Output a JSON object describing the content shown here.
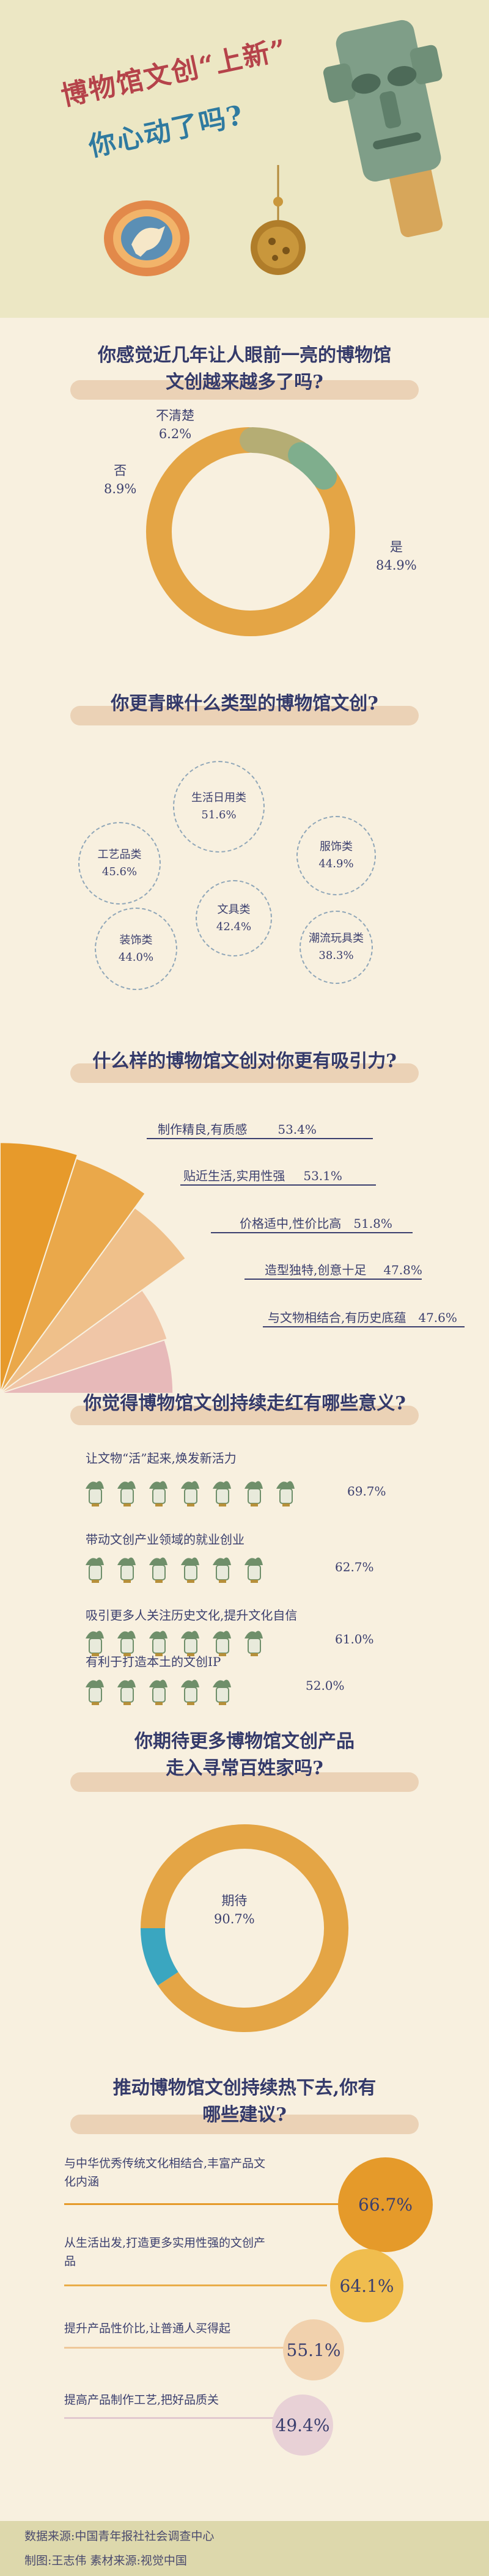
{
  "header": {
    "title_line1": "博物馆文创“上新”",
    "title_line2": "你心动了吗?"
  },
  "colors": {
    "header_bg": "#ece7c4",
    "page_bg": "#f8f0df",
    "accent_orange": "#e4a545",
    "accent_olive": "#b5ad74",
    "accent_green": "#7fae8d",
    "accent_teal": "#3aa6c0",
    "title_red": "#b5434a",
    "title_blue": "#2f7aa0"
  },
  "chart_data": [
    {
      "type": "pie",
      "question": "你感觉近几年让人眼前一亮的博物馆文创越来越多了吗?",
      "categories": [
        "是",
        "否",
        "不清楚"
      ],
      "values": [
        84.9,
        8.9,
        6.2
      ],
      "value_labels": [
        "84.9%",
        "8.9%",
        "6.2%"
      ]
    },
    {
      "type": "bar",
      "question": "你更青睐什么类型的博物馆文创?",
      "categories": [
        "生活日用类",
        "工艺品类",
        "服饰类",
        "文具类",
        "装饰类",
        "潮流玩具类"
      ],
      "values": [
        51.6,
        45.6,
        44.9,
        42.4,
        44.0,
        38.3
      ],
      "value_labels": [
        "51.6%",
        "45.6%",
        "44.9%",
        "42.4%",
        "44.0%",
        "38.3%"
      ]
    },
    {
      "type": "bar",
      "question": "什么样的博物馆文创对你更有吸引力?",
      "categories": [
        "制作精良,有质感",
        "贴近生活,实用性强",
        "价格适中,性价比高",
        "造型独特,创意十足",
        "与文物相结合,有历史底蕴"
      ],
      "values": [
        53.4,
        53.1,
        51.8,
        47.8,
        47.6
      ],
      "value_labels": [
        "53.4%",
        "53.1%",
        "51.8%",
        "47.8%",
        "47.6%"
      ]
    },
    {
      "type": "bar",
      "question": "你觉得博物馆文创持续走红有哪些意义?",
      "categories": [
        "让文物“活”起来,焕发新活力",
        "带动文创产业领域的就业创业",
        "吸引更多人关注历史文化,提升文化自信",
        "有利于打造本土的文创IP"
      ],
      "values": [
        69.7,
        62.7,
        61.0,
        52.0
      ],
      "value_labels": [
        "69.7%",
        "62.7%",
        "61.0%",
        "52.0%"
      ]
    },
    {
      "type": "pie",
      "question": "你期待更多博物馆文创产品走入寻常百姓家吗?",
      "categories": [
        "期待"
      ],
      "values": [
        90.7
      ],
      "value_labels": [
        "90.7%"
      ]
    },
    {
      "type": "bar",
      "question": "推动博物馆文创持续热下去,你有哪些建议?",
      "categories": [
        "与中华优秀传统文化相结合,丰富产品文化内涵",
        "从生活出发,打造更多实用性强的文创产品",
        "提升产品性价比,让普通人买得起",
        "提高产品制作工艺,把好品质关"
      ],
      "values": [
        66.7,
        64.1,
        55.1,
        49.4
      ],
      "value_labels": [
        "66.7%",
        "64.1%",
        "55.1%",
        "49.4%"
      ]
    }
  ],
  "footer": {
    "source": "数据来源:中国青年报社社会调查中心",
    "credits": "制图:王志伟  素材来源:视觉中国"
  }
}
